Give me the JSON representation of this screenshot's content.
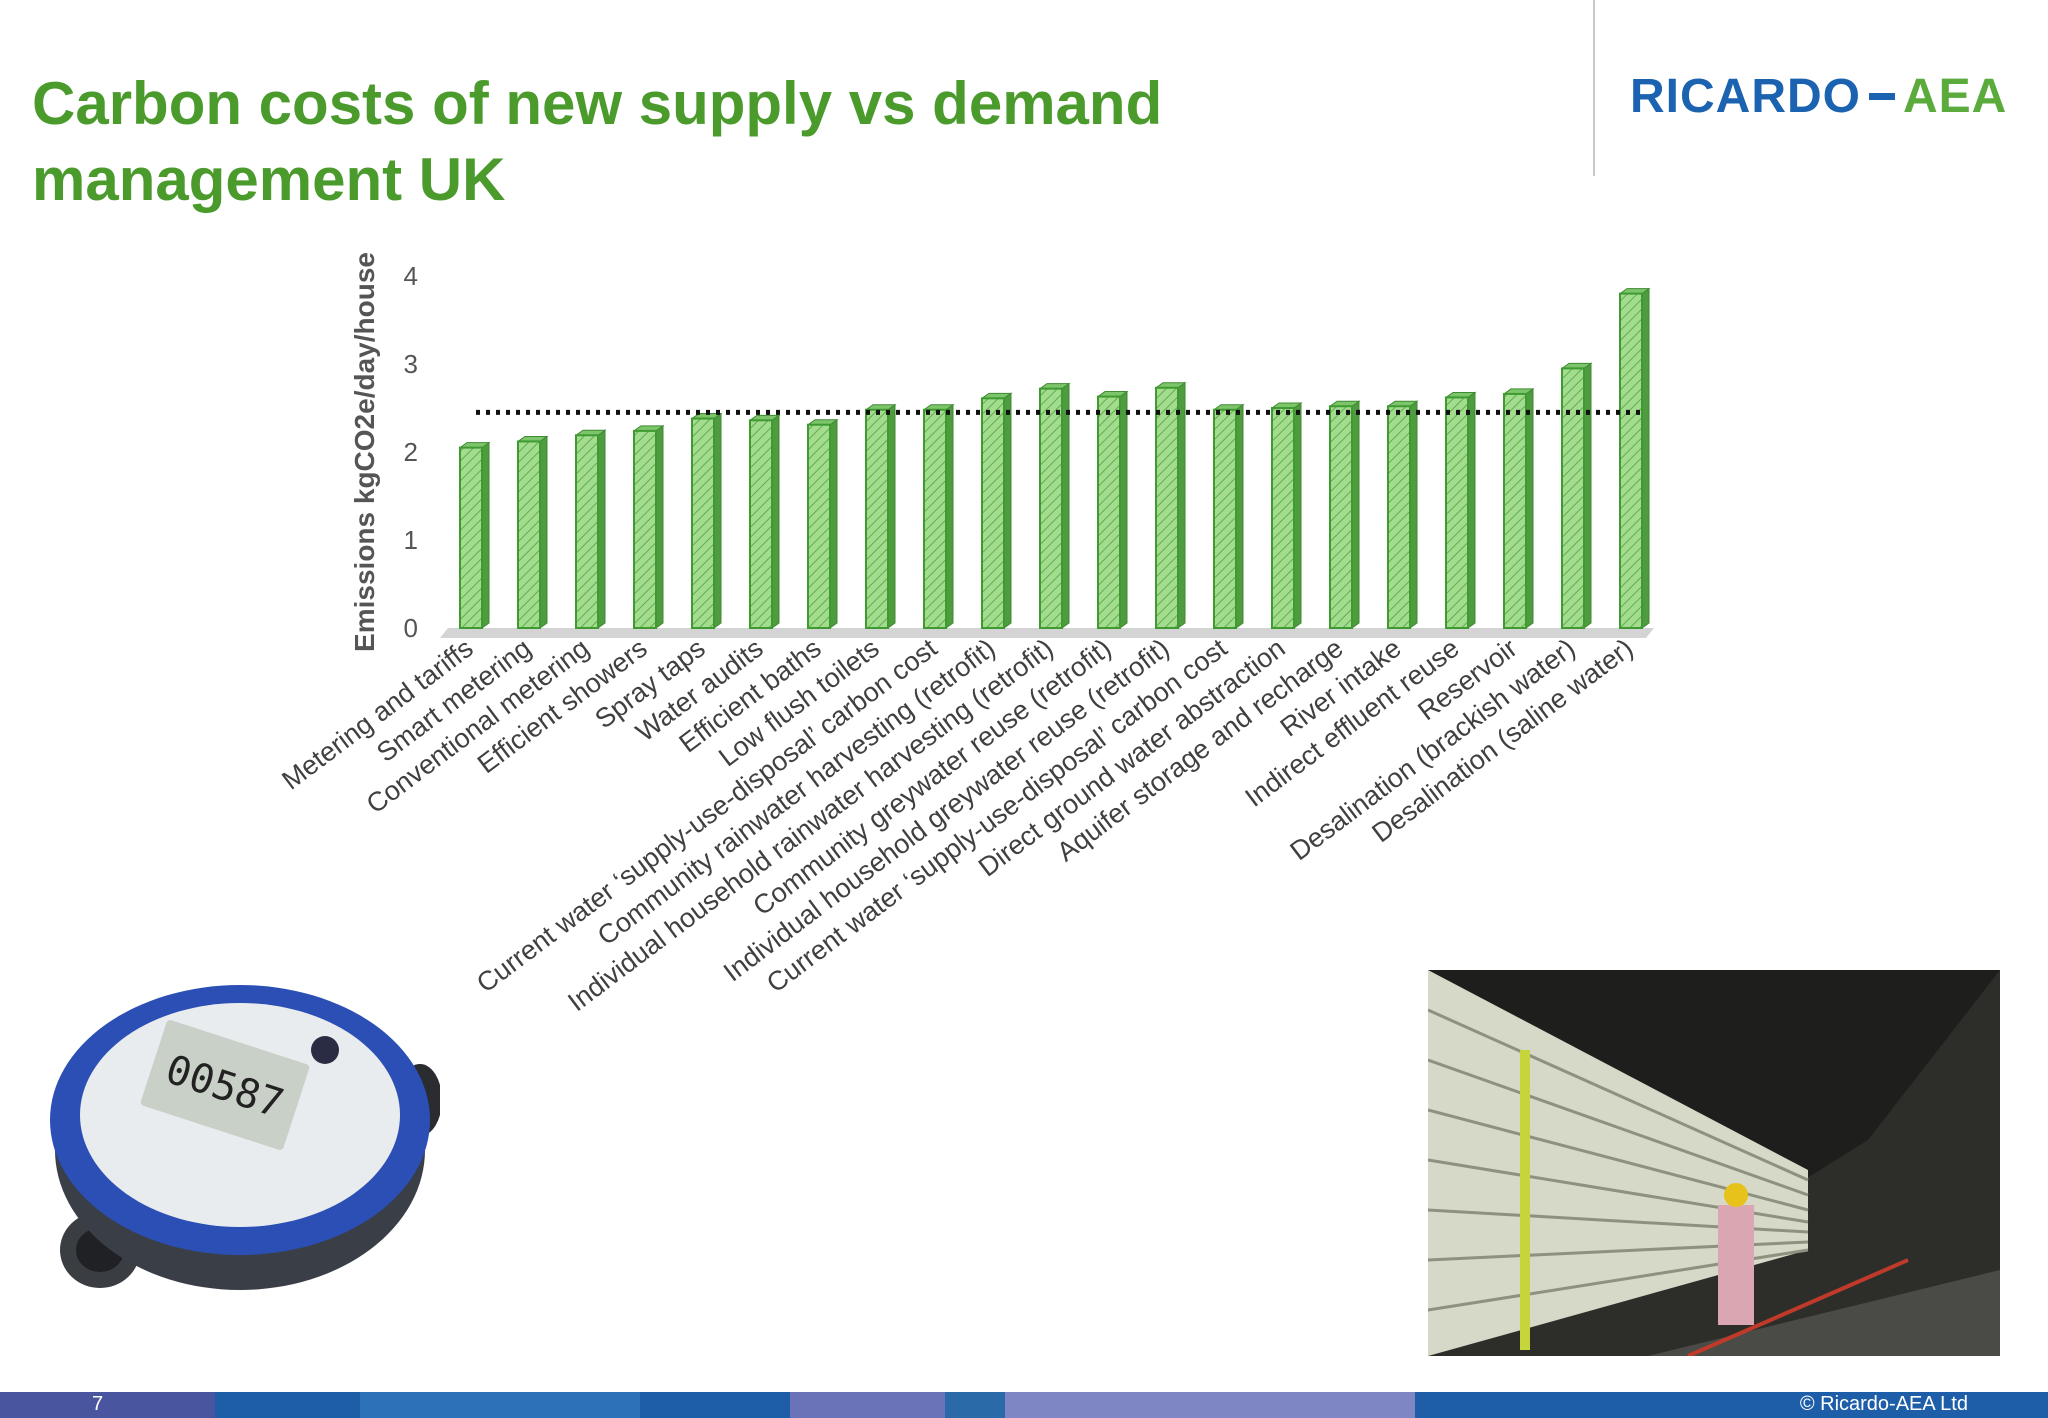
{
  "slide": {
    "title": "Carbon costs of new supply vs demand management UK",
    "page_number": "7",
    "copyright": "© Ricardo-AEA Ltd"
  },
  "logo": {
    "part1": "RICARDO",
    "part2": "AEA",
    "primary_color": "#1b63b0",
    "secondary_color": "#5aaa3c"
  },
  "colors": {
    "title": "#4a9a2c",
    "bar_fill": "#9ed98a",
    "bar_edge": "#3f9a32",
    "footer": [
      "#4a55a0",
      "#1e5ea8",
      "#2b72b8",
      "#6a72b8",
      "#7f86c4"
    ]
  },
  "chart_data": {
    "type": "bar",
    "title": "",
    "xlabel": "",
    "ylabel": "Emissions kgCO2e/day/house",
    "ylim": [
      0,
      4
    ],
    "yticks": [
      "0",
      "1",
      "2",
      "3",
      "4"
    ],
    "grid": false,
    "style": "3d-bar-hatched",
    "categories": [
      "Metering and tariffs",
      "Smart metering",
      "Conventional metering",
      "Efficient showers",
      "Spray taps",
      "Water audits",
      "Efficient baths",
      "Low flush toilets",
      "Current water ‘supply-use-disposal’ carbon cost",
      "Community rainwater harvesting (retrofit)",
      "Individual household rainwater harvesting (retrofit)",
      "Community greywater reuse (retrofit)",
      "Individual household greywater reuse (retrofit)",
      "Current water ‘supply-use-disposal’ carbon cost",
      "Direct ground water abstraction",
      "Aquifer storage and recharge",
      "River intake",
      "Indirect effluent reuse",
      "Reservoir",
      "Desalination (brackish water)",
      "Desalination (saline water)"
    ],
    "values": [
      2.05,
      2.12,
      2.19,
      2.24,
      2.38,
      2.36,
      2.31,
      2.48,
      2.48,
      2.61,
      2.72,
      2.63,
      2.73,
      2.48,
      2.5,
      2.52,
      2.52,
      2.62,
      2.66,
      2.95,
      3.8
    ],
    "reference_line": {
      "value": 2.45,
      "style": "dotted"
    }
  },
  "images": {
    "left": "water-meter-photo",
    "right": "desalination-plant-photo"
  }
}
